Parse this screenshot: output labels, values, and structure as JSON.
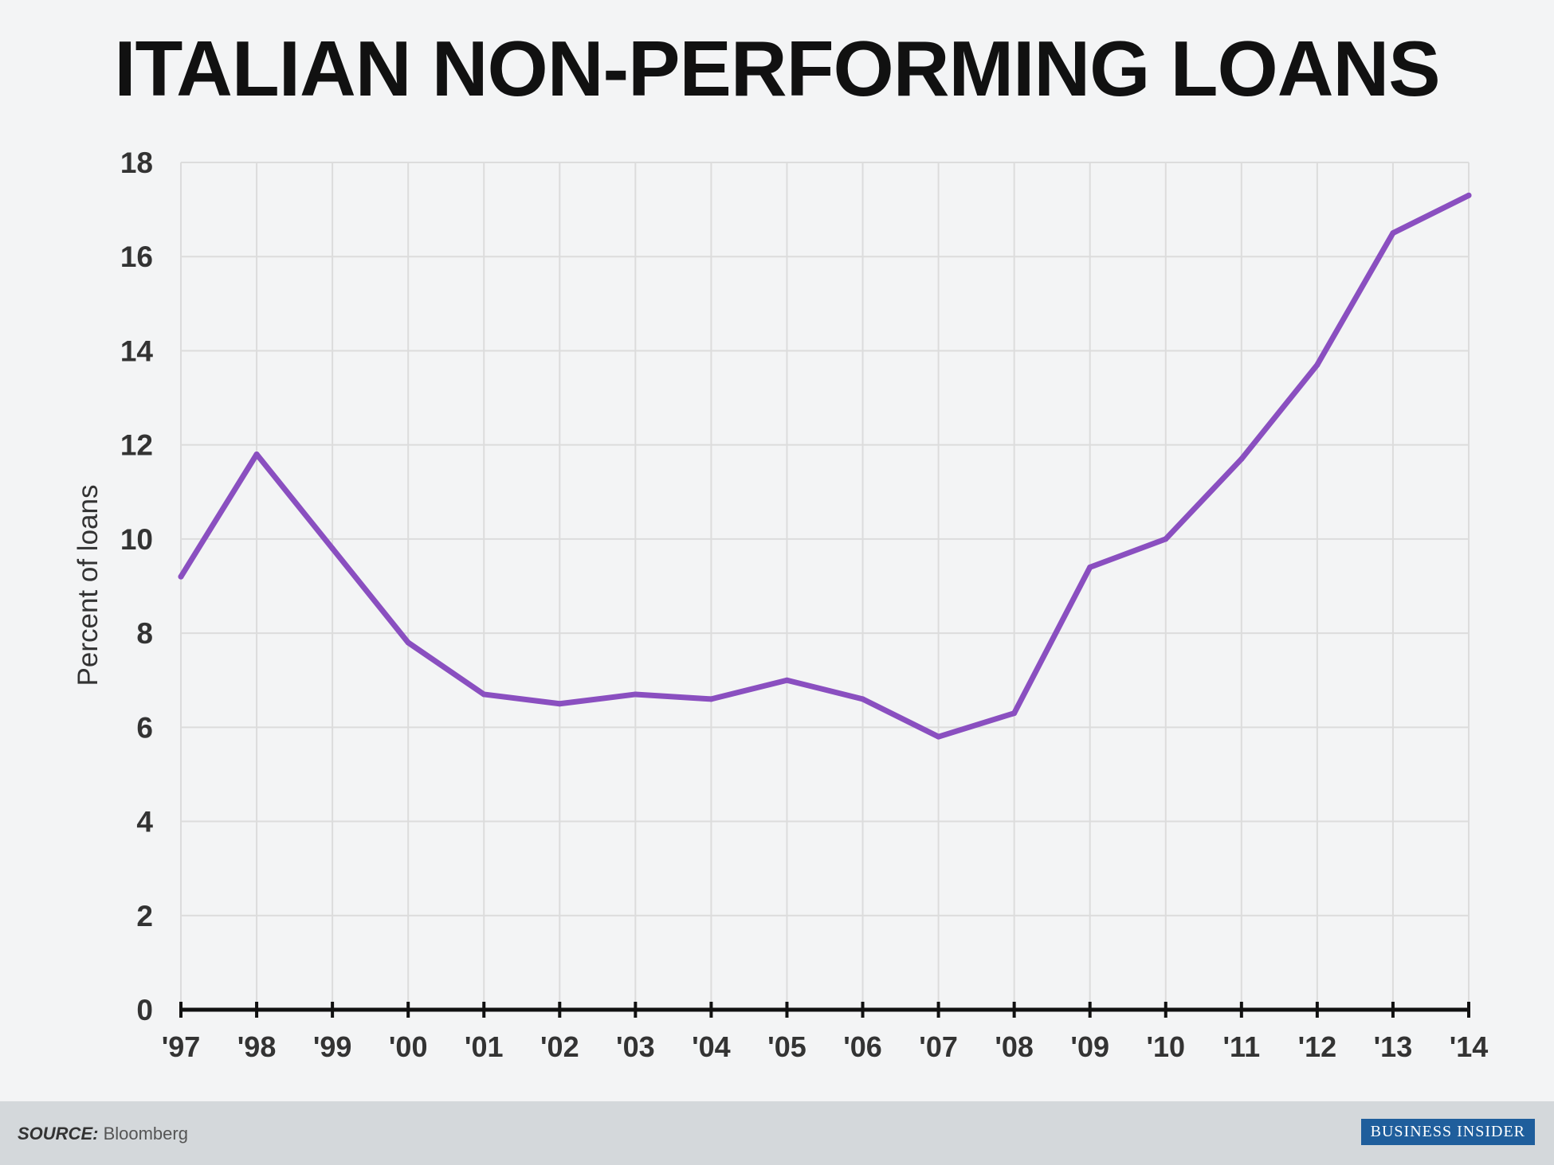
{
  "chart_data": {
    "type": "line",
    "title": "ITALIAN NON-PERFORMING LOANS",
    "xlabel": "",
    "ylabel": "Percent of loans",
    "categories": [
      "'97",
      "'98",
      "'99",
      "'00",
      "'01",
      "'02",
      "'03",
      "'04",
      "'05",
      "'06",
      "'07",
      "'08",
      "'09",
      "'10",
      "'11",
      "'12",
      "'13",
      "'14"
    ],
    "series": [
      {
        "values": [
          9.2,
          11.8,
          9.8,
          7.8,
          6.7,
          6.5,
          6.7,
          6.6,
          7.0,
          6.6,
          5.8,
          6.3,
          9.4,
          10.0,
          11.7,
          13.7,
          16.5,
          17.3
        ]
      }
    ],
    "ylim": [
      0,
      18
    ],
    "yticks": [
      0,
      2,
      4,
      6,
      8,
      10,
      12,
      14,
      16,
      18
    ],
    "grid": true,
    "line_color": "#8a4fc0"
  },
  "footer": {
    "source_label": "SOURCE:",
    "source_value": "Bloomberg",
    "brand": "BUSINESS INSIDER"
  }
}
